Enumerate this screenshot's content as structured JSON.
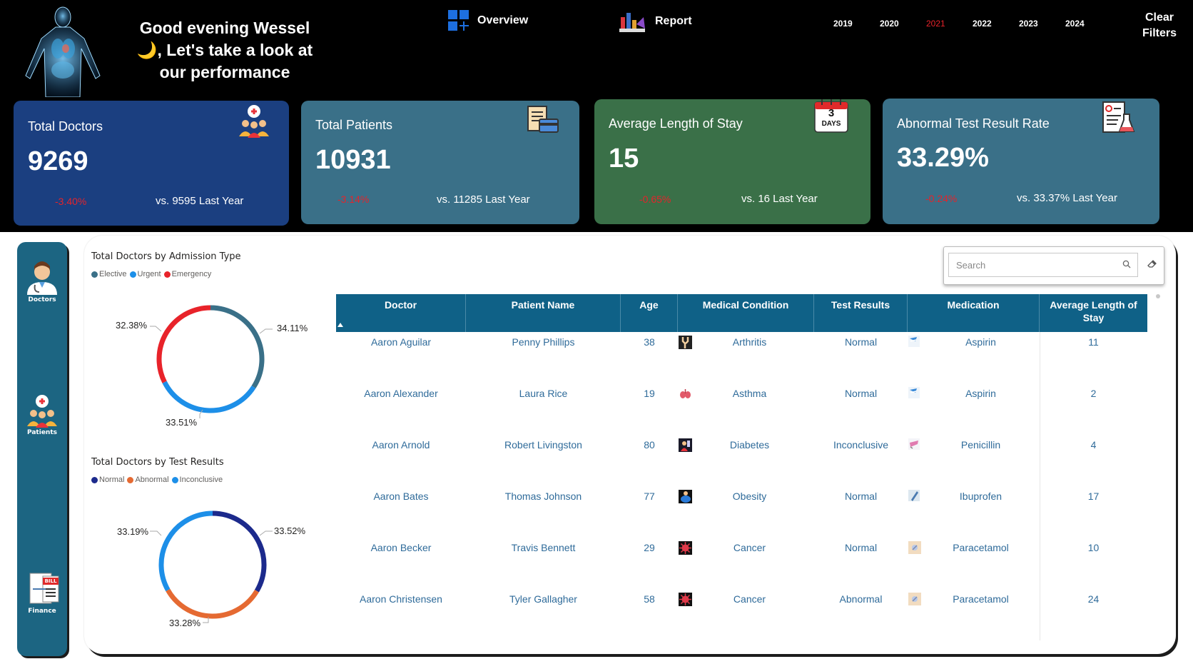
{
  "header": {
    "greeting_lines": [
      "Good evening Wessel",
      "🌙, Let's take a look at",
      "our performance"
    ],
    "nav": {
      "overview_label": "Overview",
      "report_label": "Report"
    },
    "years": [
      "2019",
      "2020",
      "2021",
      "2022",
      "2023",
      "2024"
    ],
    "active_year": "2021",
    "clear_filters_label": "Clear Filters"
  },
  "kpis": [
    {
      "title": "Total Doctors",
      "value": "9269",
      "delta": "-3.40%",
      "comparison": "vs. 9595 Last Year",
      "color": "#1b3f80",
      "icon": "doctors-group-icon"
    },
    {
      "title": "Total Patients",
      "value": "10931",
      "delta": "-3.14%",
      "comparison": "vs. 11285 Last Year",
      "color": "#3a7088",
      "icon": "bill-card-icon"
    },
    {
      "title": "Average Length of Stay",
      "value": "15",
      "delta": "-0.65%",
      "comparison": "vs. 16 Last Year",
      "color": "#3a7048",
      "icon": "calendar-days-icon",
      "icon_text": [
        "3",
        "DAYS"
      ]
    },
    {
      "title": "Abnormal Test Result Rate",
      "value": "33.29%",
      "delta": "-0.24%",
      "comparison": "vs. 33.37% Last Year",
      "color": "#3a7088",
      "icon": "lab-report-icon"
    }
  ],
  "sidebar": {
    "items": [
      {
        "label": "Doctors",
        "icon": "doctor-icon"
      },
      {
        "label": "Patients",
        "icon": "patients-icon"
      },
      {
        "label": "Finance",
        "icon": "bill-icon",
        "icon_text": "BILL"
      }
    ]
  },
  "charts": {
    "admission": {
      "title": "Total Doctors by Admission Type",
      "legend": [
        {
          "name": "Elective",
          "color": "#3a7088"
        },
        {
          "name": "Urgent",
          "color": "#1d8fe8"
        },
        {
          "name": "Emergency",
          "color": "#e8232a"
        }
      ],
      "labels": [
        "34.11%",
        "33.51%",
        "32.38%"
      ]
    },
    "test_results": {
      "title": "Total Doctors by Test Results",
      "legend": [
        {
          "name": "Normal",
          "color": "#1c2a8c"
        },
        {
          "name": "Abnormal",
          "color": "#e56a32"
        },
        {
          "name": "Inconclusive",
          "color": "#1d8fe8"
        }
      ],
      "labels": [
        "33.52%",
        "33.28%",
        "33.19%"
      ]
    }
  },
  "chart_data": [
    {
      "type": "pie",
      "title": "Total Doctors by Admission Type",
      "categories": [
        "Elective",
        "Urgent",
        "Emergency"
      ],
      "values": [
        34.11,
        33.51,
        32.38
      ],
      "colors": [
        "#3a7088",
        "#1d8fe8",
        "#e8232a"
      ],
      "legend": "top-left"
    },
    {
      "type": "pie",
      "title": "Total Doctors by Test Results",
      "categories": [
        "Normal",
        "Abnormal",
        "Inconclusive"
      ],
      "values": [
        33.52,
        33.28,
        33.19
      ],
      "colors": [
        "#1c2a8c",
        "#e56a32",
        "#1d8fe8"
      ],
      "legend": "top-left"
    }
  ],
  "search": {
    "placeholder": "Search"
  },
  "table": {
    "columns": [
      "Doctor",
      "Patient Name",
      "Age",
      "Medical Condition",
      "Test Results",
      "Medication",
      "Average Length of Stay"
    ],
    "rows": [
      {
        "doctor": "Aaron Aguilar",
        "patient": "Penny Phillips",
        "age": "38",
        "condition": "Arthritis",
        "condition_icon": "arthritis-icon",
        "test": "Normal",
        "medication": "Aspirin",
        "medication_icon": "aspirin-icon",
        "stay": "11"
      },
      {
        "doctor": "Aaron Alexander",
        "patient": "Laura Rice",
        "age": "19",
        "condition": "Asthma",
        "condition_icon": "lungs-icon",
        "test": "Normal",
        "medication": "Aspirin",
        "medication_icon": "aspirin-icon",
        "stay": "2"
      },
      {
        "doctor": "Aaron Arnold",
        "patient": "Robert Livingston",
        "age": "80",
        "condition": "Diabetes",
        "condition_icon": "diabetes-icon",
        "test": "Inconclusive",
        "medication": "Penicillin",
        "medication_icon": "penicillin-icon",
        "stay": "4"
      },
      {
        "doctor": "Aaron Bates",
        "patient": "Thomas Johnson",
        "age": "77",
        "condition": "Obesity",
        "condition_icon": "obesity-icon",
        "test": "Normal",
        "medication": "Ibuprofen",
        "medication_icon": "ibuprofen-icon",
        "stay": "17"
      },
      {
        "doctor": "Aaron Becker",
        "patient": "Travis Bennett",
        "age": "29",
        "condition": "Cancer",
        "condition_icon": "cancer-cell-icon",
        "test": "Normal",
        "medication": "Paracetamol",
        "medication_icon": "paracetamol-icon",
        "stay": "10"
      },
      {
        "doctor": "Aaron Christensen",
        "patient": "Tyler Gallagher",
        "age": "58",
        "condition": "Cancer",
        "condition_icon": "cancer-cell-icon",
        "test": "Abnormal",
        "medication": "Paracetamol",
        "medication_icon": "paracetamol-icon",
        "stay": "24"
      }
    ]
  }
}
